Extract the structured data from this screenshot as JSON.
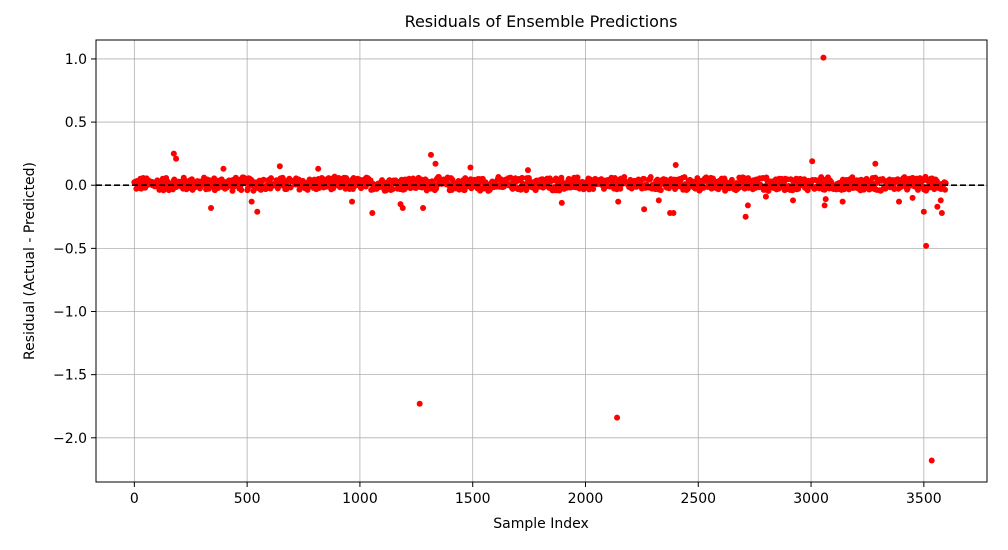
{
  "chart_data": {
    "type": "scatter",
    "title": "Residuals of Ensemble Predictions",
    "xlabel": "Sample Index",
    "ylabel": "Residual (Actual - Predicted)",
    "xlim": [
      -170,
      3780
    ],
    "ylim": [
      -2.35,
      1.15
    ],
    "xticks": [
      0,
      500,
      1000,
      1500,
      2000,
      2500,
      3000,
      3500
    ],
    "yticks": [
      1.0,
      0.5,
      0.0,
      -0.5,
      -1.0,
      -1.5,
      -2.0
    ],
    "xtick_labels": [
      "0",
      "500",
      "1000",
      "1500",
      "2000",
      "2500",
      "3000",
      "3500"
    ],
    "ytick_labels": [
      "1.0",
      "0.5",
      "0.0",
      "−0.5",
      "−1.0",
      "−1.5",
      "−2.0"
    ],
    "grid": true,
    "reference_line": {
      "y": 0.0,
      "style": "dashed",
      "color": "#000000"
    },
    "marker_color": "#ff0000",
    "n_samples": 3600,
    "band": {
      "x_range": [
        0,
        3600
      ],
      "y_range": [
        -0.05,
        0.07
      ]
    },
    "outliers": [
      {
        "x": 175,
        "y": 0.25
      },
      {
        "x": 185,
        "y": 0.21
      },
      {
        "x": 340,
        "y": -0.18
      },
      {
        "x": 395,
        "y": 0.13
      },
      {
        "x": 520,
        "y": -0.13
      },
      {
        "x": 545,
        "y": -0.21
      },
      {
        "x": 645,
        "y": 0.15
      },
      {
        "x": 815,
        "y": 0.13
      },
      {
        "x": 965,
        "y": -0.13
      },
      {
        "x": 1055,
        "y": -0.22
      },
      {
        "x": 1180,
        "y": -0.15
      },
      {
        "x": 1190,
        "y": -0.18
      },
      {
        "x": 1265,
        "y": -1.73
      },
      {
        "x": 1280,
        "y": -0.18
      },
      {
        "x": 1315,
        "y": 0.24
      },
      {
        "x": 1335,
        "y": 0.17
      },
      {
        "x": 1490,
        "y": 0.14
      },
      {
        "x": 1745,
        "y": 0.12
      },
      {
        "x": 1895,
        "y": -0.14
      },
      {
        "x": 2140,
        "y": -1.84
      },
      {
        "x": 2145,
        "y": -0.13
      },
      {
        "x": 2260,
        "y": -0.19
      },
      {
        "x": 2325,
        "y": -0.12
      },
      {
        "x": 2375,
        "y": -0.22
      },
      {
        "x": 2390,
        "y": -0.22
      },
      {
        "x": 2400,
        "y": 0.16
      },
      {
        "x": 2710,
        "y": -0.25
      },
      {
        "x": 2720,
        "y": -0.16
      },
      {
        "x": 2800,
        "y": -0.09
      },
      {
        "x": 2920,
        "y": -0.12
      },
      {
        "x": 3005,
        "y": 0.19
      },
      {
        "x": 3055,
        "y": 1.01
      },
      {
        "x": 3060,
        "y": -0.16
      },
      {
        "x": 3065,
        "y": -0.11
      },
      {
        "x": 3140,
        "y": -0.13
      },
      {
        "x": 3285,
        "y": 0.17
      },
      {
        "x": 3390,
        "y": -0.13
      },
      {
        "x": 3450,
        "y": -0.1
      },
      {
        "x": 3500,
        "y": -0.21
      },
      {
        "x": 3510,
        "y": -0.48
      },
      {
        "x": 3535,
        "y": -2.18
      },
      {
        "x": 3560,
        "y": -0.17
      },
      {
        "x": 3575,
        "y": -0.12
      },
      {
        "x": 3580,
        "y": -0.22
      }
    ]
  }
}
